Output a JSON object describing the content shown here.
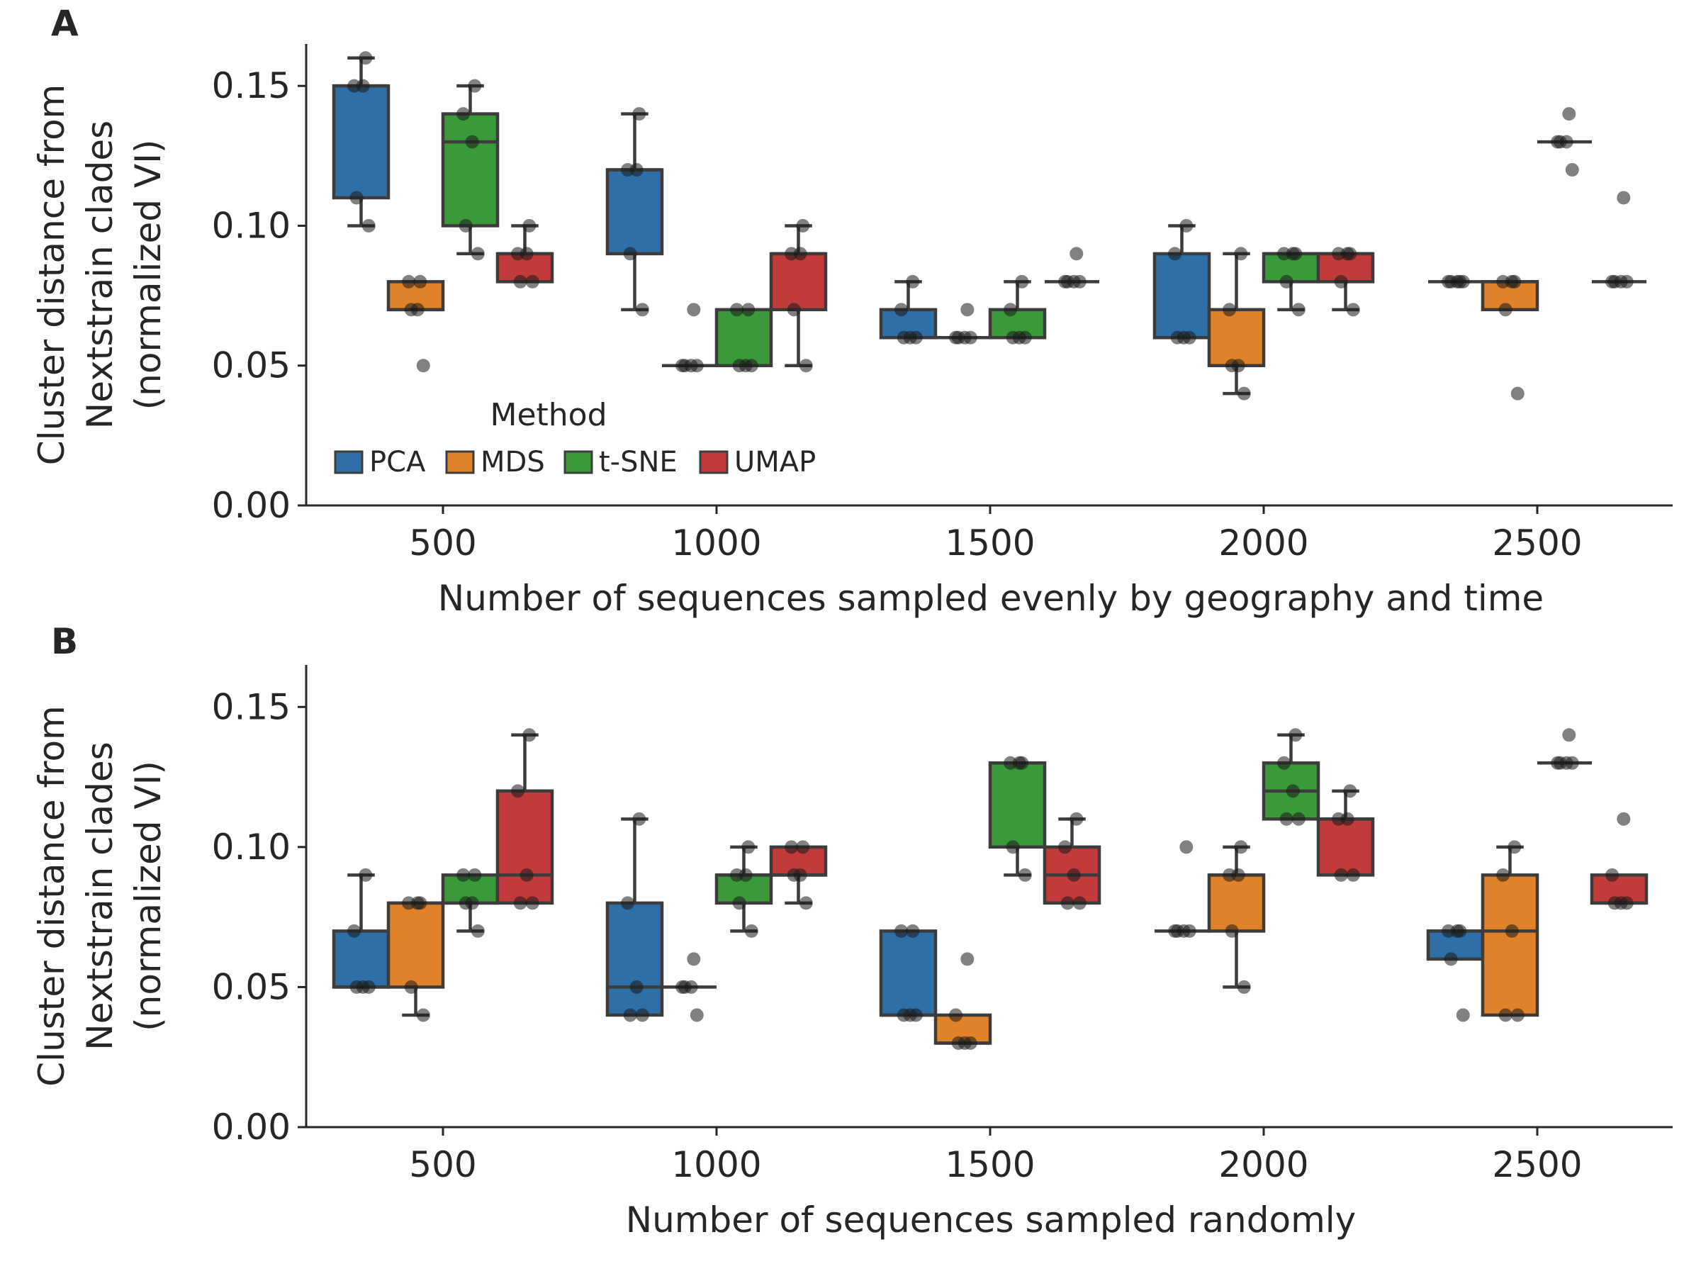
{
  "chart_data": [
    {
      "panel": "A",
      "type": "box",
      "categories": [
        "500",
        "1000",
        "1500",
        "2000",
        "2500"
      ],
      "xlabel": "Number of sequences sampled evenly by geography and time",
      "ylabel": [
        "Cluster distance from",
        "Nextstrain clades",
        "(normalized VI)"
      ],
      "ylim": [
        0,
        0.165
      ],
      "yticks": [
        "0.00",
        "0.05",
        "0.10",
        "0.15"
      ],
      "legend": {
        "title": "Method",
        "placement": "lower-left",
        "entries": [
          "PCA",
          "MDS",
          "t-SNE",
          "UMAP"
        ]
      },
      "series": [
        {
          "name": "PCA",
          "color": "#2f6fa8",
          "boxes": [
            {
              "category": "500",
              "whisker_low": 0.1,
              "q1": 0.11,
              "median": 0.15,
              "q3": 0.15,
              "whisker_high": 0.16,
              "points": [
                0.1,
                0.11,
                0.15,
                0.15,
                0.16
              ]
            },
            {
              "category": "1000",
              "whisker_low": 0.07,
              "q1": 0.09,
              "median": 0.12,
              "q3": 0.12,
              "whisker_high": 0.14,
              "points": [
                0.07,
                0.09,
                0.12,
                0.12,
                0.14
              ]
            },
            {
              "category": "1500",
              "whisker_low": 0.06,
              "q1": 0.06,
              "median": 0.06,
              "q3": 0.07,
              "whisker_high": 0.08,
              "points": [
                0.06,
                0.06,
                0.06,
                0.07,
                0.08
              ]
            },
            {
              "category": "2000",
              "whisker_low": 0.06,
              "q1": 0.06,
              "median": 0.06,
              "q3": 0.09,
              "whisker_high": 0.1,
              "points": [
                0.06,
                0.06,
                0.06,
                0.09,
                0.1
              ]
            },
            {
              "category": "2500",
              "whisker_low": 0.08,
              "q1": 0.08,
              "median": 0.08,
              "q3": 0.08,
              "whisker_high": 0.08,
              "points": [
                0.08,
                0.08,
                0.08,
                0.08,
                0.08
              ]
            }
          ]
        },
        {
          "name": "MDS",
          "color": "#e0822a",
          "boxes": [
            {
              "category": "500",
              "whisker_low": 0.07,
              "q1": 0.07,
              "median": 0.07,
              "q3": 0.08,
              "whisker_high": 0.08,
              "points": [
                0.05,
                0.07,
                0.07,
                0.08,
                0.08
              ]
            },
            {
              "category": "1000",
              "whisker_low": 0.05,
              "q1": 0.05,
              "median": 0.05,
              "q3": 0.05,
              "whisker_high": 0.05,
              "points": [
                0.05,
                0.05,
                0.05,
                0.05,
                0.07
              ]
            },
            {
              "category": "1500",
              "whisker_low": 0.06,
              "q1": 0.06,
              "median": 0.06,
              "q3": 0.06,
              "whisker_high": 0.06,
              "points": [
                0.06,
                0.06,
                0.06,
                0.06,
                0.07
              ]
            },
            {
              "category": "2000",
              "whisker_low": 0.04,
              "q1": 0.05,
              "median": 0.05,
              "q3": 0.07,
              "whisker_high": 0.09,
              "points": [
                0.04,
                0.05,
                0.05,
                0.07,
                0.09
              ]
            },
            {
              "category": "2500",
              "whisker_low": 0.07,
              "q1": 0.07,
              "median": 0.08,
              "q3": 0.08,
              "whisker_high": 0.08,
              "points": [
                0.04,
                0.07,
                0.08,
                0.08,
                0.08
              ]
            }
          ]
        },
        {
          "name": "t-SNE",
          "color": "#3a9a3a",
          "boxes": [
            {
              "category": "500",
              "whisker_low": 0.09,
              "q1": 0.1,
              "median": 0.13,
              "q3": 0.14,
              "whisker_high": 0.15,
              "points": [
                0.09,
                0.1,
                0.13,
                0.14,
                0.15
              ]
            },
            {
              "category": "1000",
              "whisker_low": 0.05,
              "q1": 0.05,
              "median": 0.05,
              "q3": 0.07,
              "whisker_high": 0.07,
              "points": [
                0.05,
                0.05,
                0.05,
                0.07,
                0.07
              ]
            },
            {
              "category": "1500",
              "whisker_low": 0.06,
              "q1": 0.06,
              "median": 0.06,
              "q3": 0.07,
              "whisker_high": 0.08,
              "points": [
                0.06,
                0.06,
                0.06,
                0.07,
                0.08
              ]
            },
            {
              "category": "2000",
              "whisker_low": 0.07,
              "q1": 0.08,
              "median": 0.09,
              "q3": 0.09,
              "whisker_high": 0.09,
              "points": [
                0.07,
                0.08,
                0.09,
                0.09,
                0.09
              ]
            },
            {
              "category": "2500",
              "whisker_low": 0.13,
              "q1": 0.13,
              "median": 0.13,
              "q3": 0.13,
              "whisker_high": 0.13,
              "points": [
                0.12,
                0.13,
                0.13,
                0.13,
                0.14
              ]
            }
          ]
        },
        {
          "name": "UMAP",
          "color": "#c23b3b",
          "boxes": [
            {
              "category": "500",
              "whisker_low": 0.08,
              "q1": 0.08,
              "median": 0.09,
              "q3": 0.09,
              "whisker_high": 0.1,
              "points": [
                0.08,
                0.08,
                0.09,
                0.09,
                0.1
              ]
            },
            {
              "category": "1000",
              "whisker_low": 0.05,
              "q1": 0.07,
              "median": 0.09,
              "q3": 0.09,
              "whisker_high": 0.1,
              "points": [
                0.05,
                0.07,
                0.09,
                0.09,
                0.1
              ]
            },
            {
              "category": "1500",
              "whisker_low": 0.08,
              "q1": 0.08,
              "median": 0.08,
              "q3": 0.08,
              "whisker_high": 0.08,
              "points": [
                0.08,
                0.08,
                0.08,
                0.08,
                0.09
              ]
            },
            {
              "category": "2000",
              "whisker_low": 0.07,
              "q1": 0.08,
              "median": 0.09,
              "q3": 0.09,
              "whisker_high": 0.09,
              "points": [
                0.07,
                0.08,
                0.09,
                0.09,
                0.09
              ]
            },
            {
              "category": "2500",
              "whisker_low": 0.08,
              "q1": 0.08,
              "median": 0.08,
              "q3": 0.08,
              "whisker_high": 0.08,
              "points": [
                0.08,
                0.08,
                0.08,
                0.08,
                0.11
              ]
            }
          ]
        }
      ]
    },
    {
      "panel": "B",
      "type": "box",
      "categories": [
        "500",
        "1000",
        "1500",
        "2000",
        "2500"
      ],
      "xlabel": "Number of sequences sampled randomly",
      "ylabel": [
        "Cluster distance from",
        "Nextstrain clades",
        "(normalized VI)"
      ],
      "ylim": [
        0,
        0.165
      ],
      "yticks": [
        "0.00",
        "0.05",
        "0.10",
        "0.15"
      ],
      "series": [
        {
          "name": "PCA",
          "color": "#2f6fa8",
          "boxes": [
            {
              "category": "500",
              "whisker_low": 0.05,
              "q1": 0.05,
              "median": 0.05,
              "q3": 0.07,
              "whisker_high": 0.09,
              "points": [
                0.05,
                0.05,
                0.05,
                0.07,
                0.09
              ]
            },
            {
              "category": "1000",
              "whisker_low": 0.04,
              "q1": 0.04,
              "median": 0.05,
              "q3": 0.08,
              "whisker_high": 0.11,
              "points": [
                0.04,
                0.04,
                0.05,
                0.08,
                0.11
              ]
            },
            {
              "category": "1500",
              "whisker_low": 0.04,
              "q1": 0.04,
              "median": 0.04,
              "q3": 0.07,
              "whisker_high": 0.07,
              "points": [
                0.04,
                0.04,
                0.04,
                0.07,
                0.07
              ]
            },
            {
              "category": "2000",
              "whisker_low": 0.07,
              "q1": 0.07,
              "median": 0.07,
              "q3": 0.07,
              "whisker_high": 0.07,
              "points": [
                0.07,
                0.07,
                0.07,
                0.07,
                0.1
              ]
            },
            {
              "category": "2500",
              "whisker_low": 0.06,
              "q1": 0.06,
              "median": 0.07,
              "q3": 0.07,
              "whisker_high": 0.07,
              "points": [
                0.04,
                0.06,
                0.07,
                0.07,
                0.07
              ]
            }
          ]
        },
        {
          "name": "MDS",
          "color": "#e0822a",
          "boxes": [
            {
              "category": "500",
              "whisker_low": 0.04,
              "q1": 0.05,
              "median": 0.08,
              "q3": 0.08,
              "whisker_high": 0.08,
              "points": [
                0.04,
                0.05,
                0.08,
                0.08,
                0.08
              ]
            },
            {
              "category": "1000",
              "whisker_low": 0.05,
              "q1": 0.05,
              "median": 0.05,
              "q3": 0.05,
              "whisker_high": 0.05,
              "points": [
                0.04,
                0.05,
                0.05,
                0.05,
                0.06
              ]
            },
            {
              "category": "1500",
              "whisker_low": 0.03,
              "q1": 0.03,
              "median": 0.03,
              "q3": 0.04,
              "whisker_high": 0.04,
              "points": [
                0.03,
                0.03,
                0.03,
                0.04,
                0.06
              ]
            },
            {
              "category": "2000",
              "whisker_low": 0.05,
              "q1": 0.07,
              "median": 0.09,
              "q3": 0.09,
              "whisker_high": 0.1,
              "points": [
                0.05,
                0.07,
                0.09,
                0.09,
                0.1
              ]
            },
            {
              "category": "2500",
              "whisker_low": 0.04,
              "q1": 0.04,
              "median": 0.07,
              "q3": 0.09,
              "whisker_high": 0.1,
              "points": [
                0.04,
                0.04,
                0.07,
                0.09,
                0.1
              ]
            }
          ]
        },
        {
          "name": "t-SNE",
          "color": "#3a9a3a",
          "boxes": [
            {
              "category": "500",
              "whisker_low": 0.07,
              "q1": 0.08,
              "median": 0.08,
              "q3": 0.09,
              "whisker_high": 0.09,
              "points": [
                0.07,
                0.08,
                0.08,
                0.09,
                0.09
              ]
            },
            {
              "category": "1000",
              "whisker_low": 0.07,
              "q1": 0.08,
              "median": 0.09,
              "q3": 0.09,
              "whisker_high": 0.1,
              "points": [
                0.07,
                0.08,
                0.09,
                0.09,
                0.1
              ]
            },
            {
              "category": "1500",
              "whisker_low": 0.09,
              "q1": 0.1,
              "median": 0.13,
              "q3": 0.13,
              "whisker_high": 0.13,
              "points": [
                0.09,
                0.1,
                0.13,
                0.13,
                0.13
              ]
            },
            {
              "category": "2000",
              "whisker_low": 0.11,
              "q1": 0.11,
              "median": 0.12,
              "q3": 0.13,
              "whisker_high": 0.14,
              "points": [
                0.11,
                0.11,
                0.12,
                0.13,
                0.14
              ]
            },
            {
              "category": "2500",
              "whisker_low": 0.13,
              "q1": 0.13,
              "median": 0.13,
              "q3": 0.13,
              "whisker_high": 0.13,
              "points": [
                0.13,
                0.13,
                0.13,
                0.13,
                0.14
              ]
            }
          ]
        },
        {
          "name": "UMAP",
          "color": "#c23b3b",
          "boxes": [
            {
              "category": "500",
              "whisker_low": 0.08,
              "q1": 0.08,
              "median": 0.09,
              "q3": 0.12,
              "whisker_high": 0.14,
              "points": [
                0.08,
                0.08,
                0.09,
                0.12,
                0.14
              ]
            },
            {
              "category": "1000",
              "whisker_low": 0.08,
              "q1": 0.09,
              "median": 0.09,
              "q3": 0.1,
              "whisker_high": 0.1,
              "points": [
                0.08,
                0.09,
                0.09,
                0.1,
                0.1
              ]
            },
            {
              "category": "1500",
              "whisker_low": 0.08,
              "q1": 0.08,
              "median": 0.09,
              "q3": 0.1,
              "whisker_high": 0.11,
              "points": [
                0.08,
                0.08,
                0.09,
                0.1,
                0.11
              ]
            },
            {
              "category": "2000",
              "whisker_low": 0.09,
              "q1": 0.09,
              "median": 0.11,
              "q3": 0.11,
              "whisker_high": 0.12,
              "points": [
                0.09,
                0.09,
                0.11,
                0.11,
                0.12
              ]
            },
            {
              "category": "2500",
              "whisker_low": 0.08,
              "q1": 0.08,
              "median": 0.08,
              "q3": 0.09,
              "whisker_high": 0.09,
              "points": [
                0.08,
                0.08,
                0.08,
                0.09,
                0.11
              ]
            }
          ]
        }
      ]
    }
  ]
}
